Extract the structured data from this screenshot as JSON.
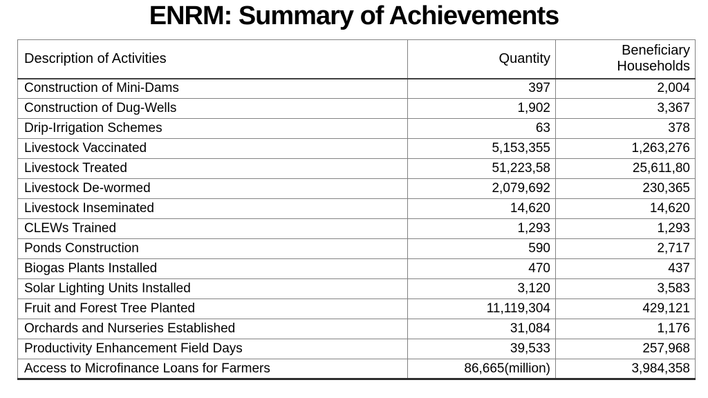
{
  "title": "ENRM: Summary of Achievements",
  "table": {
    "headers": {
      "description": "Description of Activities",
      "quantity": "Quantity",
      "households": "Beneficiary Households"
    },
    "rows": [
      {
        "desc": "Construction of Mini-Dams",
        "quantity": "397",
        "households": "2,004"
      },
      {
        "desc": "Construction of Dug-Wells",
        "quantity": "1,902",
        "households": "3,367"
      },
      {
        "desc": "Drip-Irrigation Schemes",
        "quantity": "63",
        "households": "378"
      },
      {
        "desc": "Livestock Vaccinated",
        "quantity": "5,153,355",
        "households": "1,263,276"
      },
      {
        "desc": "Livestock Treated",
        "quantity": "51,223,58",
        "households": "25,611,80"
      },
      {
        "desc": "Livestock De-wormed",
        "quantity": "2,079,692",
        "households": "230,365"
      },
      {
        "desc": "Livestock Inseminated",
        "quantity": "14,620",
        "households": "14,620"
      },
      {
        "desc": "CLEWs Trained",
        "quantity": "1,293",
        "households": "1,293"
      },
      {
        "desc": "Ponds Construction",
        "quantity": "590",
        "households": "2,717"
      },
      {
        "desc": "Biogas Plants Installed",
        "quantity": "470",
        "households": "437"
      },
      {
        "desc": "Solar Lighting Units Installed",
        "quantity": "3,120",
        "households": "3,583"
      },
      {
        "desc": "Fruit and Forest Tree Planted",
        "quantity": "11,119,304",
        "households": "429,121"
      },
      {
        "desc": "Orchards and Nurseries Established",
        "quantity": "31,084",
        "households": "1,176"
      },
      {
        "desc": "Productivity Enhancement Field Days",
        "quantity": "39,533",
        "households": "257,968"
      },
      {
        "desc": "Access to Microfinance Loans for Farmers",
        "quantity": "86,665(million)",
        "households": "3,984,358"
      }
    ]
  }
}
